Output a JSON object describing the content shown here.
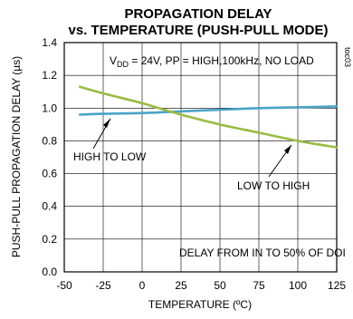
{
  "chart_data": {
    "type": "line",
    "title_line1": "PROPAGATION DELAY",
    "title_line2": "vs. TEMPERATURE (PUSH-PULL MODE)",
    "xlabel": "TEMPERATURE (ºC)",
    "ylabel": "PUSH-PULL PROPAGATION DELAY (µs)",
    "side_label": "toc03",
    "xlim": [
      -50,
      125
    ],
    "ylim": [
      0.0,
      1.4
    ],
    "xticks": [
      -50,
      -25,
      0,
      25,
      50,
      75,
      100,
      125
    ],
    "xtick_labels": [
      "-50",
      "-25",
      "0",
      "25",
      "50",
      "75",
      "100",
      "125"
    ],
    "yticks": [
      0.0,
      0.2,
      0.4,
      0.6,
      0.8,
      1.0,
      1.2,
      1.4
    ],
    "ytick_labels": [
      "0.0",
      "0.2",
      "0.4",
      "0.6",
      "0.8",
      "1.0",
      "1.2",
      "1.4"
    ],
    "grid": true,
    "series": [
      {
        "name": "HIGH TO LOW",
        "color": "#4ba3c7",
        "x": [
          -40,
          -25,
          0,
          25,
          50,
          75,
          100,
          125
        ],
        "y": [
          0.96,
          0.965,
          0.97,
          0.98,
          0.99,
          1.0,
          1.005,
          1.01
        ]
      },
      {
        "name": "LOW TO HIGH",
        "color": "#9bbb44",
        "x": [
          -40,
          -25,
          0,
          25,
          50,
          75,
          100,
          125
        ],
        "y": [
          1.13,
          1.09,
          1.03,
          0.96,
          0.9,
          0.85,
          0.8,
          0.76
        ]
      }
    ],
    "annotations": {
      "conditions_prefix": "V",
      "conditions_sub": "DD",
      "conditions_rest": " = 24V, PP = HIGH,100kHz, NO LOAD",
      "footnote": "DELAY FROM IN TO 50% OF DOI"
    }
  }
}
